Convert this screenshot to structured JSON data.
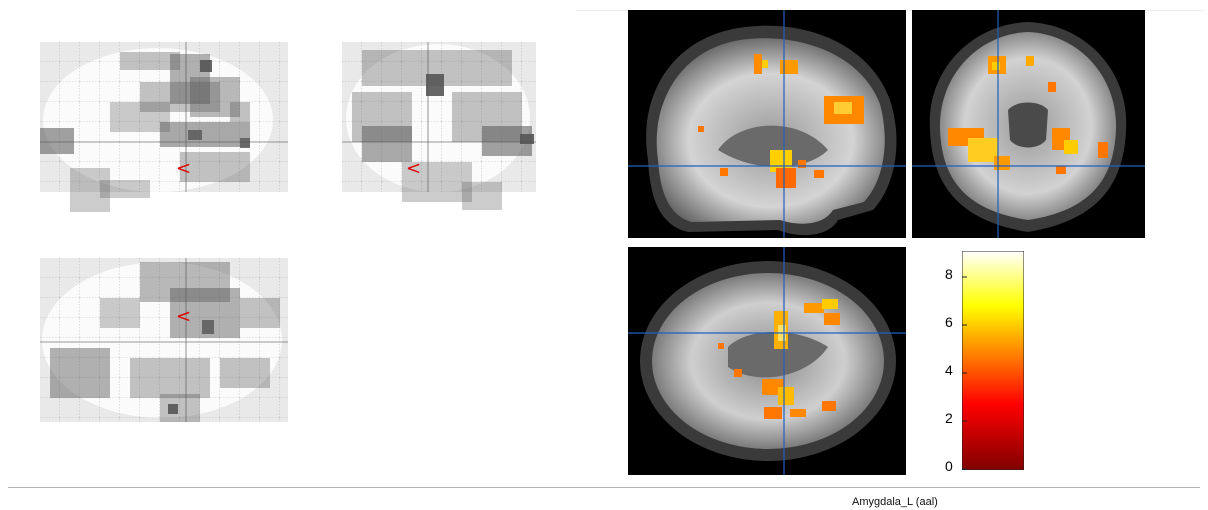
{
  "region_label": "Amygdala_L (aal)",
  "colorbar": {
    "ticks": [
      "8",
      "6",
      "4",
      "2",
      "0"
    ],
    "min": 0,
    "max": 8.8,
    "colormap": [
      "#800000",
      "#ff0000",
      "#ff8000",
      "#ffff00",
      "#ffffff"
    ]
  },
  "glass_brain": {
    "views": [
      "sagittal",
      "coronal",
      "axial"
    ],
    "marker": "<",
    "marker_color": "#e00000"
  },
  "orthogonal_slices": {
    "views": [
      "sagittal",
      "coronal",
      "axial"
    ],
    "crosshair_color": "#1f5fbf"
  }
}
